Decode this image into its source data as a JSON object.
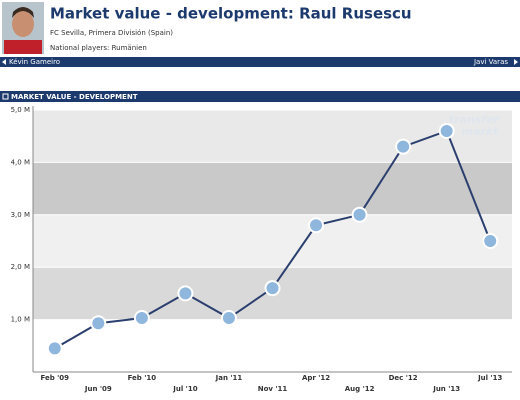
{
  "header": {
    "title": "Market value - development: Raul Rusescu",
    "club": "FC Sevilla, Primera División (Spain)",
    "national": "National players: Rumänien"
  },
  "nav": {
    "prev": "Kévin Gameiro",
    "next": "Javi Varas"
  },
  "section": {
    "title": "MARKET VALUE - DEVELOPMENT"
  },
  "watermark": [
    "transfer",
    "markt"
  ],
  "chart_data": {
    "type": "line",
    "categories": [
      "Feb '09",
      "Jun '09",
      "Feb '10",
      "Jul '10",
      "Jan '11",
      "Nov '11",
      "Apr '12",
      "Aug '12",
      "Dec '12",
      "Jun '13",
      "Jul '13"
    ],
    "series": [
      {
        "name": "Market value",
        "color": "#2b3f6f",
        "values": [
          0.45,
          0.93,
          1.03,
          1.5,
          1.03,
          1.6,
          2.8,
          3.0,
          4.3,
          4.6,
          2.5
        ]
      }
    ],
    "ylim": [
      0,
      5
    ],
    "yticks": [
      {
        "value": 1,
        "label": "1,0 M"
      },
      {
        "value": 2,
        "label": "2,0 M"
      },
      {
        "value": 3,
        "label": "3,0 M"
      },
      {
        "value": 4,
        "label": "4,0 M"
      },
      {
        "value": 5,
        "label": "5,0 M"
      }
    ],
    "grid": true
  }
}
